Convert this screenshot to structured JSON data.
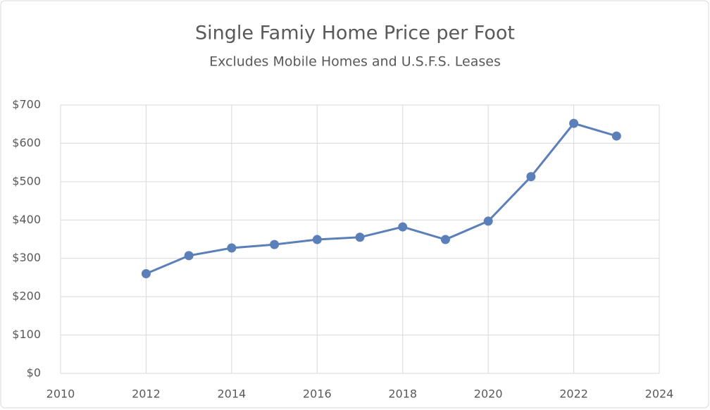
{
  "chart_data": {
    "type": "line",
    "title": "Single Famiy Home Price per Foot",
    "subtitle": "Excludes Mobile Homes and U.S.F.S.  Leases",
    "x": [
      2012,
      2013,
      2014,
      2015,
      2016,
      2017,
      2018,
      2019,
      2020,
      2021,
      2022,
      2023
    ],
    "series": [
      {
        "color": "#5b7fb8",
        "values": [
          260,
          307,
          327,
          336,
          349,
          355,
          382,
          349,
          397,
          513,
          652,
          619
        ]
      }
    ],
    "xlim": [
      2010,
      2024
    ],
    "xticks": [
      2010,
      2012,
      2014,
      2016,
      2018,
      2020,
      2022,
      2024
    ],
    "ylim": [
      0,
      700
    ],
    "yticks": [
      {
        "value": 0,
        "label": "$0"
      },
      {
        "value": 100,
        "label": "$100"
      },
      {
        "value": 200,
        "label": "$200"
      },
      {
        "value": 300,
        "label": "$300"
      },
      {
        "value": 400,
        "label": "$400"
      },
      {
        "value": 500,
        "label": "$500"
      },
      {
        "value": 600,
        "label": "$600"
      },
      {
        "value": 700,
        "label": "$700"
      }
    ],
    "grid": true
  }
}
